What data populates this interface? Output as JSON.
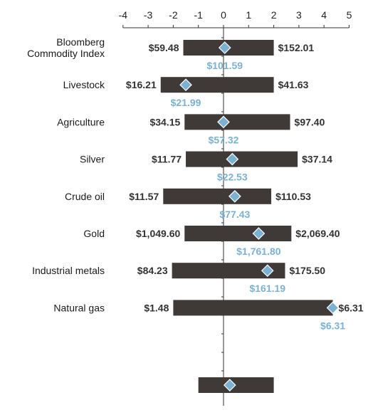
{
  "chart_data": {
    "type": "range",
    "x_ticks": [
      -4,
      -3,
      -2,
      -1,
      0,
      1,
      2,
      3,
      4,
      5
    ],
    "xlim": [
      -4,
      5
    ],
    "colors": {
      "bar": "#3f3937",
      "marker": "#7bb1d3",
      "current_label": "#7bb1d3",
      "axis": "#333333"
    },
    "rows": [
      {
        "label_lines": [
          "Bloomberg",
          "Commodity Index"
        ],
        "low": -1.6,
        "high": 2.0,
        "current": 0.05,
        "low_label": "$59.48",
        "high_label": "$152.01",
        "current_label": "$101.59"
      },
      {
        "label_lines": [
          "Livestock"
        ],
        "low": -2.5,
        "high": 2.0,
        "current": -1.5,
        "low_label": "$16.21",
        "high_label": "$41.63",
        "current_label": "$21.99"
      },
      {
        "label_lines": [
          "Agriculture"
        ],
        "low": -1.55,
        "high": 2.65,
        "current": 0.0,
        "low_label": "$34.15",
        "high_label": "$97.40",
        "current_label": "$57.32"
      },
      {
        "label_lines": [
          "Silver"
        ],
        "low": -1.5,
        "high": 2.95,
        "current": 0.35,
        "low_label": "$11.77",
        "high_label": "$37.14",
        "current_label": "$22.53"
      },
      {
        "label_lines": [
          "Crude oil"
        ],
        "low": -2.4,
        "high": 1.9,
        "current": 0.45,
        "low_label": "$11.57",
        "high_label": "$110.53",
        "current_label": "$77.43"
      },
      {
        "label_lines": [
          "Gold"
        ],
        "low": -1.55,
        "high": 2.7,
        "current": 1.4,
        "low_label": "$1,049.60",
        "high_label": "$2,069.40",
        "current_label": "$1,761.80"
      },
      {
        "label_lines": [
          "Industrial metals"
        ],
        "low": -2.05,
        "high": 2.45,
        "current": 1.75,
        "low_label": "$84.23",
        "high_label": "$175.50",
        "current_label": "$161.19"
      },
      {
        "label_lines": [
          "Natural gas"
        ],
        "low": -2.0,
        "high": 4.35,
        "current": 4.35,
        "low_label": "$1.48",
        "high_label": "$6.31",
        "current_label": "$6.31"
      }
    ],
    "legend": {
      "low": -1.0,
      "high": 2.0,
      "current": 0.25
    }
  }
}
